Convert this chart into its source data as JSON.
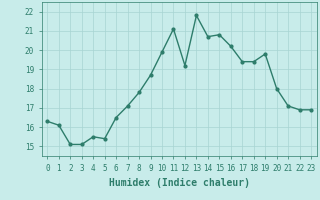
{
  "title": "",
  "xlabel": "Humidex (Indice chaleur)",
  "x": [
    0,
    1,
    2,
    3,
    4,
    5,
    6,
    7,
    8,
    9,
    10,
    11,
    12,
    13,
    14,
    15,
    16,
    17,
    18,
    19,
    20,
    21,
    22,
    23
  ],
  "y": [
    16.3,
    16.1,
    15.1,
    15.1,
    15.5,
    15.4,
    16.5,
    17.1,
    17.8,
    18.7,
    19.9,
    21.1,
    19.2,
    21.8,
    20.7,
    20.8,
    20.2,
    19.4,
    19.4,
    19.8,
    18.0,
    17.1,
    16.9,
    16.9
  ],
  "line_color": "#2e7d6b",
  "marker": "o",
  "marker_size": 2,
  "line_width": 1.0,
  "bg_color": "#c8ecea",
  "grid_color": "#a8d4d2",
  "ylim": [
    14.5,
    22.5
  ],
  "yticks": [
    15,
    16,
    17,
    18,
    19,
    20,
    21,
    22
  ],
  "xticks": [
    0,
    1,
    2,
    3,
    4,
    5,
    6,
    7,
    8,
    9,
    10,
    11,
    12,
    13,
    14,
    15,
    16,
    17,
    18,
    19,
    20,
    21,
    22,
    23
  ],
  "tick_fontsize": 5.5,
  "xlabel_fontsize": 7,
  "title_fontsize": 7,
  "tick_color": "#2e7d6b",
  "label_color": "#2e7d6b"
}
